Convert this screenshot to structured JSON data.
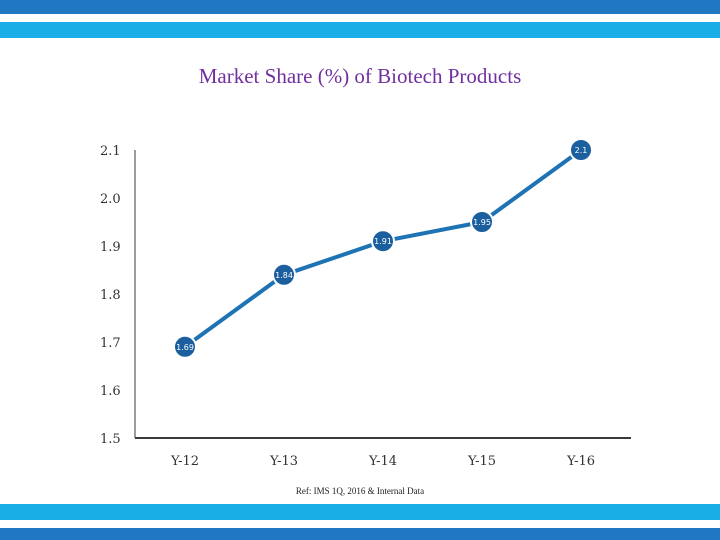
{
  "colors": {
    "band_dark": "#1f78c1",
    "band_light": "#19aee6",
    "line": "#1e73b5",
    "marker": "#1b5f9e",
    "axis": "#3a3a3a",
    "title": "#7030a0"
  },
  "footer": {
    "ref": "Ref: IMS 1Q, 2016 & Internal Data"
  },
  "chart_data": {
    "type": "line",
    "title": "Market Share (%) of Biotech Products",
    "xlabel": "",
    "ylabel": "",
    "categories": [
      "Y-12",
      "Y-13",
      "Y-14",
      "Y-15",
      "Y-16"
    ],
    "series": [
      {
        "values": [
          1.69,
          1.84,
          1.91,
          1.95,
          2.1
        ],
        "labels": [
          "1.69",
          "1.84",
          "1.91",
          "1.95",
          "2.1"
        ]
      }
    ],
    "yticks": [
      "1.5",
      "1.6",
      "1.7",
      "1.8",
      "1.9",
      "2.0",
      "2.1"
    ],
    "ylim": [
      1.5,
      2.1
    ],
    "grid": false,
    "legend": "none"
  }
}
